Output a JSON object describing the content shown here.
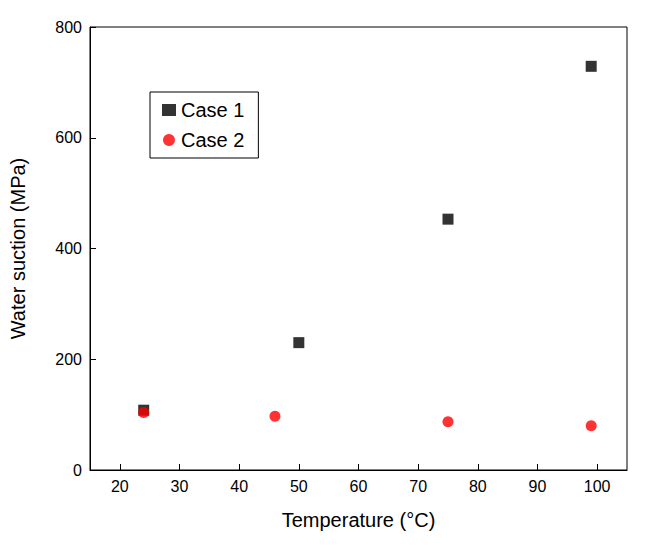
{
  "chart_data": {
    "type": "scatter",
    "x_label": "Temperature (°C)",
    "y_label": "Water suction (MPa)",
    "xlim": [
      15,
      105
    ],
    "xticks": [
      20,
      30,
      40,
      50,
      60,
      70,
      80,
      90,
      100
    ],
    "ylim": [
      0,
      800
    ],
    "yticks": [
      0,
      200,
      400,
      600,
      800
    ],
    "grid": false,
    "legend": "upper left",
    "series": [
      {
        "name": "Case 1",
        "color": "#000000",
        "marker": "square",
        "x": [
          24,
          50,
          75,
          99
        ],
        "values": [
          108,
          230,
          453,
          729
        ]
      },
      {
        "name": "Case 2",
        "color": "#ff0000",
        "marker": "circle",
        "x": [
          24,
          46,
          75,
          99
        ],
        "values": [
          104,
          97,
          87,
          80
        ]
      }
    ]
  }
}
